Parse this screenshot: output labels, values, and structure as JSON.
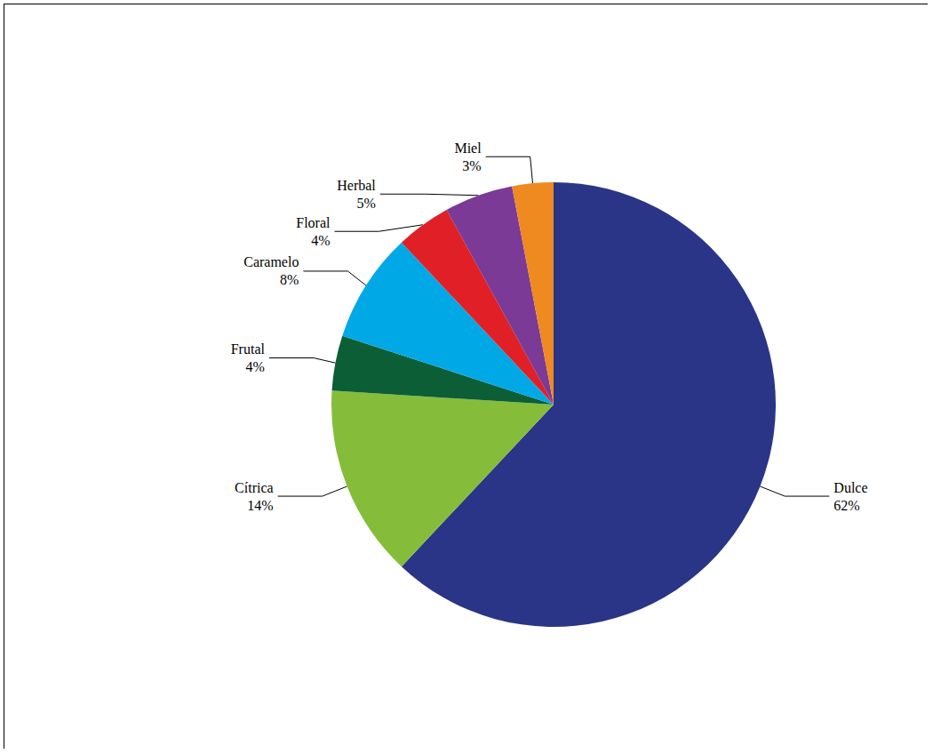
{
  "chart_data": {
    "type": "pie",
    "categories": [
      "Dulce",
      "Cítrica",
      "Frutal",
      "Caramelo",
      "Floral",
      "Herbal",
      "Miel"
    ],
    "values": [
      62,
      14,
      4,
      8,
      4,
      5,
      3
    ],
    "value_labels": [
      "62%",
      "14%",
      "4%",
      "8%",
      "4%",
      "5%",
      "3%"
    ],
    "colors": [
      "#2a3587",
      "#85bd3b",
      "#0b5e36",
      "#00a9e6",
      "#e01f26",
      "#7b3a96",
      "#ee8a1f"
    ],
    "data_labels": true
  }
}
